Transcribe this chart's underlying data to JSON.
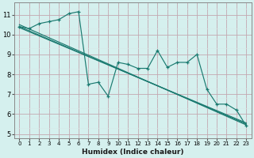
{
  "xlabel": "Humidex (Indice chaleur)",
  "xlim": [
    -0.5,
    23.5
  ],
  "ylim": [
    4.8,
    11.6
  ],
  "bg_color": "#d5f0ee",
  "line_color": "#1a7a70",
  "grid_major_color": "#c4a8b0",
  "grid_minor_color": "#d8e8e8",
  "xticks": [
    0,
    1,
    2,
    3,
    4,
    5,
    6,
    7,
    8,
    9,
    10,
    11,
    12,
    13,
    14,
    15,
    16,
    17,
    18,
    19,
    20,
    21,
    22,
    23
  ],
  "yticks": [
    5,
    6,
    7,
    8,
    9,
    10,
    11
  ],
  "main_x": [
    0,
    1,
    2,
    3,
    4,
    5,
    6,
    7,
    8,
    9,
    10,
    11,
    12,
    13,
    14,
    15,
    16,
    17,
    18,
    19,
    20,
    21,
    22,
    23
  ],
  "main_y": [
    10.4,
    10.3,
    10.55,
    10.65,
    10.75,
    11.05,
    11.15,
    7.5,
    7.6,
    6.9,
    8.6,
    8.5,
    8.3,
    8.3,
    9.2,
    8.35,
    8.6,
    8.6,
    9.0,
    7.25,
    6.5,
    6.5,
    6.2,
    5.4
  ],
  "trend_lines": [
    {
      "x0": 0,
      "y0": 10.5,
      "x1": 23,
      "y1": 5.45
    },
    {
      "x0": 0,
      "y0": 10.4,
      "x1": 23,
      "y1": 5.5
    },
    {
      "x0": 0,
      "y0": 10.35,
      "x1": 23,
      "y1": 5.55
    }
  ]
}
